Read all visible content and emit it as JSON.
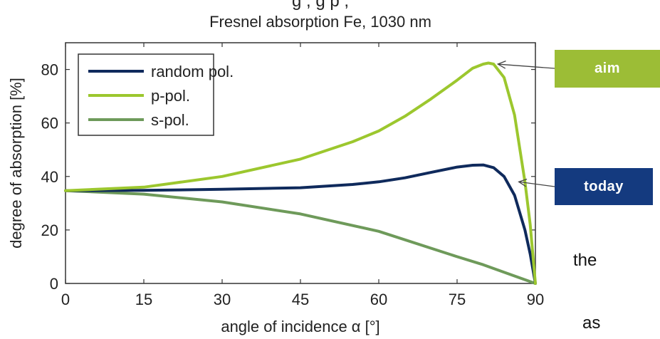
{
  "header": {
    "top_fragment": "g                   ,                   g   p                 ,",
    "aim_label": "aim",
    "today_label": "today",
    "side_text_1": "the",
    "side_text_2": "as"
  },
  "colors": {
    "random_pol": "#0f2a5c",
    "p_pol": "#9cc72e",
    "s_pol": "#6e9a5a",
    "aim_tag": "#9cbd36",
    "today_tag": "#143a7f",
    "axis": "#333333"
  },
  "chart_data": {
    "type": "line",
    "title": "Fresnel absorption Fe, 1030 nm",
    "xlabel": "angle of incidence α [°]",
    "ylabel": "degree of absorption [%]",
    "xlim": [
      0,
      90
    ],
    "ylim": [
      0,
      90
    ],
    "xticks": [
      0,
      15,
      30,
      45,
      60,
      75,
      90
    ],
    "yticks": [
      0,
      20,
      40,
      60,
      80
    ],
    "legend_position": "top-left",
    "grid": false,
    "series": [
      {
        "name": "random pol.",
        "color_key": "random_pol",
        "x": [
          0,
          15,
          30,
          45,
          55,
          60,
          65,
          70,
          75,
          78,
          80,
          82,
          84,
          86,
          88,
          89,
          90
        ],
        "y": [
          34.7,
          34.8,
          35.2,
          35.8,
          37,
          38,
          39.5,
          41.5,
          43.5,
          44.2,
          44.3,
          43.3,
          40,
          33,
          20,
          11,
          0
        ]
      },
      {
        "name": "p-pol.",
        "color_key": "p_pol",
        "x": [
          0,
          15,
          30,
          45,
          55,
          60,
          65,
          70,
          75,
          78,
          80,
          81,
          82,
          84,
          86,
          88,
          89,
          90
        ],
        "y": [
          34.7,
          36,
          40,
          46.5,
          53,
          57,
          62.5,
          69,
          76,
          80.5,
          82,
          82.4,
          82,
          77,
          63,
          38,
          22,
          0
        ]
      },
      {
        "name": "s-pol.",
        "color_key": "s_pol",
        "x": [
          0,
          15,
          30,
          45,
          60,
          75,
          80,
          85,
          90
        ],
        "y": [
          34.7,
          33.4,
          30.5,
          26,
          19.5,
          10,
          7,
          3.5,
          0
        ]
      }
    ],
    "annotations": [
      {
        "label": "aim",
        "target_series": "p-pol.",
        "x": 82,
        "y": 82
      },
      {
        "label": "today",
        "target_series": "random pol.",
        "x": 86,
        "y": 38
      }
    ]
  }
}
